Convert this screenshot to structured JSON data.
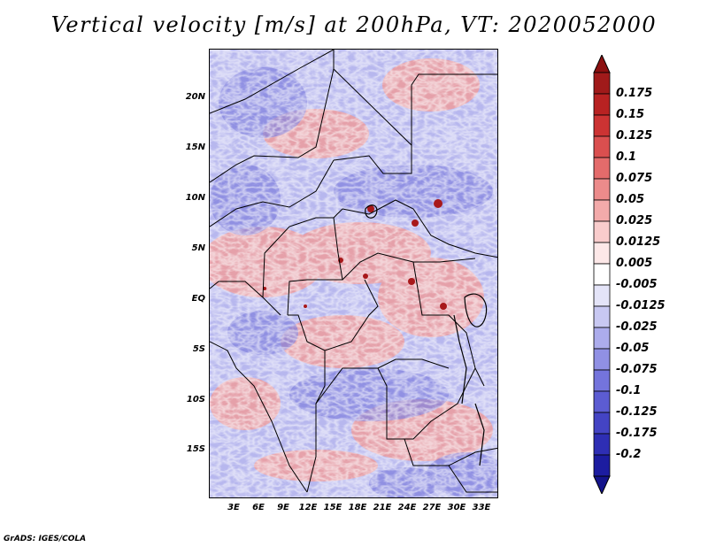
{
  "title": "Vertical velocity [m/s] at 200hPa, VT: 2020052000",
  "credit": "GrADS: IGES/COLA",
  "map": {
    "region": "Central Africa",
    "lat_ticks": [
      "20N",
      "15N",
      "10N",
      "5N",
      "EQ",
      "5S",
      "10S",
      "15S"
    ],
    "lon_ticks": [
      "3E",
      "6E",
      "9E",
      "12E",
      "15E",
      "18E",
      "21E",
      "24E",
      "27E",
      "30E",
      "33E"
    ]
  },
  "colorbar": {
    "labels": [
      "0.175",
      "0.15",
      "0.125",
      "0.1",
      "0.075",
      "0.05",
      "0.025",
      "0.0125",
      "0.005",
      "-0.005",
      "-0.0125",
      "-0.025",
      "-0.05",
      "-0.075",
      "-0.1",
      "-0.125",
      "-0.175",
      "-0.2"
    ],
    "colors": [
      "#a01a1a",
      "#b82222",
      "#cc3333",
      "#da4f4f",
      "#e46b6b",
      "#ec8b8b",
      "#f3aaaa",
      "#f9cccc",
      "#fde8e8",
      "#ffffff",
      "#e4e4f8",
      "#c8c8f2",
      "#acacec",
      "#9090e4",
      "#7474dc",
      "#5c5cd2",
      "#4444c4",
      "#2e2eb4",
      "#1c1ca0"
    ],
    "top_color": "#8c1010",
    "bottom_color": "#14148c"
  }
}
